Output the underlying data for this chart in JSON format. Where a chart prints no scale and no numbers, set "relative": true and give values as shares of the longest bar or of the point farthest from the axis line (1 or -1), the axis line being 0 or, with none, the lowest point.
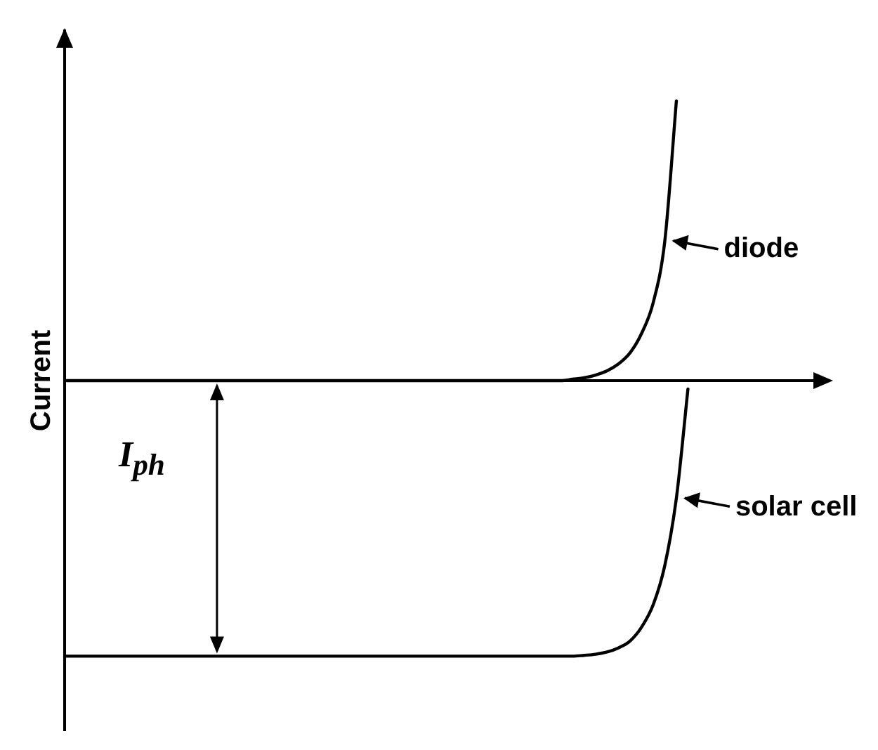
{
  "chart_data": {
    "type": "line",
    "relative": true,
    "ylabel": "Current",
    "annotations": [
      "I$_{ph}$"
    ],
    "categories": [
      null,
      null,
      null,
      null,
      null,
      null,
      null,
      null,
      null,
      null,
      null,
      null,
      null,
      null,
      null,
      null,
      null,
      null,
      null,
      null,
      null,
      null,
      null,
      null,
      null,
      null,
      null,
      null,
      null,
      null,
      null,
      null,
      null,
      null,
      null,
      null,
      null,
      null,
      null,
      null,
      null,
      null,
      null,
      null,
      null,
      null,
      null,
      null,
      null,
      null,
      null,
      null,
      null,
      null,
      null,
      null,
      null,
      null,
      null,
      null,
      null
    ],
    "series": [
      {
        "name": "diode",
        "color": "#000000",
        "values": [
          0,
          0,
          0,
          0,
          0,
          0,
          0,
          0,
          0,
          0,
          0,
          0,
          0,
          0,
          0,
          0,
          0,
          0,
          0,
          0,
          0,
          0,
          0,
          0,
          0,
          0,
          0,
          0,
          0,
          0,
          0,
          0,
          0,
          0,
          0,
          0,
          0,
          0,
          0,
          0,
          0,
          0,
          0,
          0,
          0.005,
          0.01,
          0.02,
          0.035,
          0.06,
          0.1,
          0.17,
          0.28,
          0.5,
          1,
          null,
          null,
          null,
          null,
          null,
          null,
          null
        ]
      },
      {
        "name": "solar cell",
        "color": "#000000",
        "values": [
          -0.985,
          -0.985,
          -0.985,
          -0.985,
          -0.985,
          -0.985,
          -0.985,
          -0.985,
          -0.985,
          -0.985,
          -0.985,
          -0.985,
          -0.985,
          -0.985,
          -0.985,
          -0.985,
          -0.985,
          -0.985,
          -0.985,
          -0.985,
          -0.985,
          -0.985,
          -0.985,
          -0.985,
          -0.985,
          -0.985,
          -0.985,
          -0.985,
          -0.985,
          -0.985,
          -0.985,
          -0.985,
          -0.985,
          -0.985,
          -0.985,
          -0.985,
          -0.985,
          -0.985,
          -0.985,
          -0.985,
          -0.985,
          -0.985,
          -0.985,
          -0.985,
          -0.985,
          -0.982,
          -0.978,
          -0.97,
          -0.955,
          -0.93,
          -0.88,
          -0.8,
          -0.66,
          -0.42,
          -0.03,
          null,
          null,
          null,
          null,
          null,
          null
        ]
      }
    ],
    "grid": false,
    "legend": "right",
    "marker": "none",
    "line_style": "solid"
  }
}
